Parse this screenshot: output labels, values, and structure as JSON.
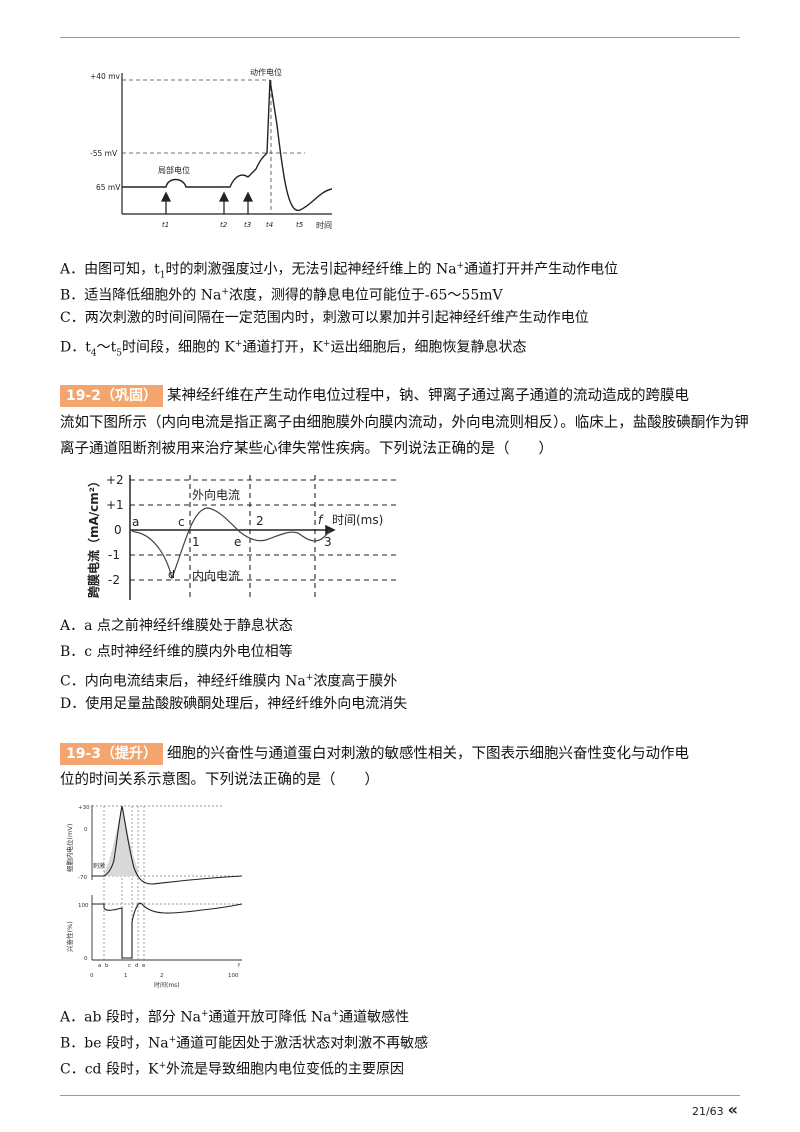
{
  "fig1": {
    "y_labels": [
      "+40 mv",
      "-55 mV",
      "65 mV"
    ],
    "x_axis_label": "时间",
    "ticks": [
      "t1",
      "t2",
      "t3",
      "t4",
      "t5"
    ],
    "ann_action": "动作电位",
    "ann_local": "局部电位"
  },
  "q1_options": [
    {
      "letter": "A．",
      "a": "由图可知，t",
      "sub": "1",
      "b": "时的刺激强度过小，无法引起神经纤维上的 Na",
      "sup": "+",
      "c": "通道打开并产生动作电位"
    },
    {
      "letter": "B．",
      "a": "适当降低细胞外的 Na",
      "sup": "+",
      "b": "浓度，测得的静息电位可能位于-65～55mV"
    },
    {
      "letter": "C．",
      "a": "两次刺激的时间间隔在一定范围内时，刺激可以累加并引起神经纤维产生动作电位"
    },
    {
      "letter": "D．",
      "a": "t",
      "sub1": "4",
      "b": "～t",
      "sub2": "5",
      "c": "时间段，细胞的 K",
      "sup1": "+",
      "d": "通道打开，K",
      "sup2": "+",
      "e": "运出细胞后，细胞恢复静息状态"
    }
  ],
  "q2": {
    "tag": "19-2（巩固）",
    "line1": "某神经纤维在产生动作电位过程中，钠、钾离子通过离子通道的流动造成的跨膜电",
    "line2": "流如下图所示（内向电流是指正离子由细胞膜外向膜内流动，外向电流则相反）。临床上，盐酸胺碘酮作为钾",
    "line3": "离子通道阻断剂被用来治疗某些心律失常性疾病。下列说法正确的是（　　）"
  },
  "fig2": {
    "y_axis_label": "跨膜电流（mA/cm²）",
    "y_ticks": [
      "+2",
      "+1",
      "0",
      "-1",
      "-2"
    ],
    "x_ticks": [
      "1",
      "2",
      "3"
    ],
    "x_axis_label": "时间(ms)",
    "points": [
      "a",
      "c",
      "d",
      "e",
      "f"
    ],
    "outward": "外向电流",
    "inward": "内向电流"
  },
  "q2_options": [
    {
      "letter": "A．",
      "a": "a 点之前神经纤维膜处于静息状态"
    },
    {
      "letter": "B．",
      "a": "c 点时神经纤维的膜内外电位相等"
    },
    {
      "letter": "C．",
      "a": "内向电流结束后，神经纤维膜内 Na",
      "sup": "+",
      "b": "浓度高于膜外"
    },
    {
      "letter": "D．",
      "a": "使用足量盐酸胺碘酮处理后，神经纤维外向电流消失"
    }
  ],
  "q3": {
    "tag": "19-3（提升）",
    "line1": "细胞的兴奋性与通道蛋白对刺激的敏感性相关，下图表示细胞兴奋性变化与动作电",
    "line2": "位的时间关系示意图。下列说法正确的是（　　）"
  },
  "fig3": {
    "top_y_label": "细胞内电位(mV)",
    "top_ticks": [
      "+30",
      "0",
      "-70"
    ],
    "stim": "刺激",
    "bottom_y_label": "兴奋性(%)",
    "bottom_ticks": [
      "100",
      "0"
    ],
    "x_points": [
      "a",
      "b",
      "c",
      "d",
      "e",
      "f"
    ],
    "x_ticks": [
      "0",
      "1",
      "2",
      "100"
    ],
    "x_label": "时间(ms)"
  },
  "q3_options": [
    {
      "letter": "A．",
      "a": "ab 段时，部分 Na",
      "sup1": "+",
      "b": "通道开放可降低 Na",
      "sup2": "+",
      "c": "通道敏感性"
    },
    {
      "letter": "B．",
      "a": "be 段时，Na",
      "sup": "+",
      "b": "通道可能因处于激活状态对刺激不再敏感"
    },
    {
      "letter": "C．",
      "a": "cd 段时，K",
      "sup": "+",
      "b": "外流是导致细胞内电位变低的主要原因"
    }
  ],
  "footer": {
    "page": "21/63",
    "chev": "«"
  }
}
